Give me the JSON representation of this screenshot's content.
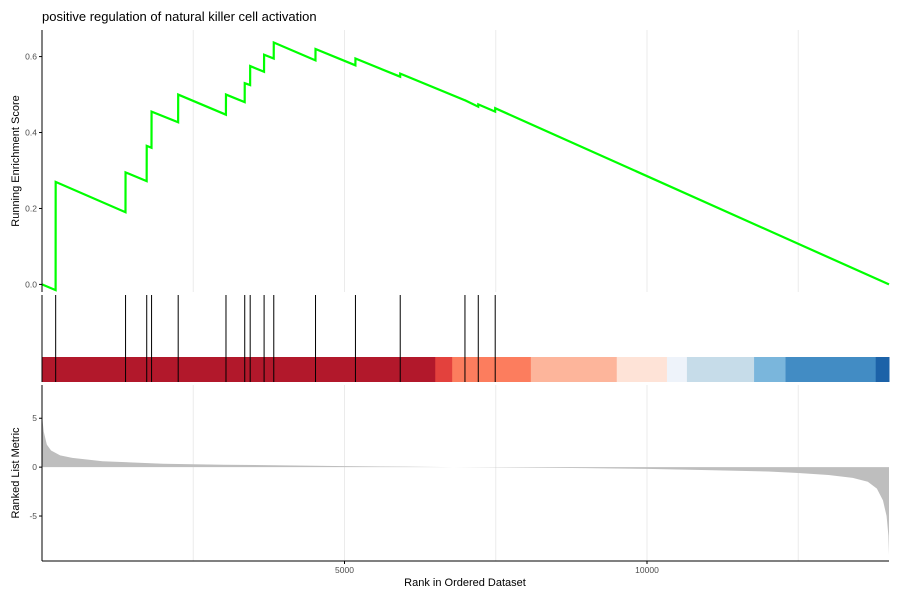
{
  "chart_data": {
    "type": "line",
    "title": "positive regulation of natural killer cell activation",
    "x_axis": {
      "label": "Rank in Ordered Dataset",
      "range": [
        0,
        14000
      ],
      "ticks": [
        5000,
        10000
      ],
      "tick_labels": [
        "5000",
        "10000"
      ],
      "minor_gridlines": [
        2500,
        7500,
        12500
      ]
    },
    "panels": {
      "running_es": {
        "ylabel": "Running Enrichment Score",
        "ylim": [
          -0.02,
          0.67
        ],
        "y_ticks": [
          0.0,
          0.2,
          0.4,
          0.6
        ],
        "y_tick_labels": [
          "0.0",
          "0.2",
          "0.4",
          "0.6"
        ],
        "line_color": "#00ff00",
        "points": [
          [
            0,
            0.0
          ],
          [
            225,
            -0.015
          ],
          [
            226,
            0.27
          ],
          [
            1380,
            0.19
          ],
          [
            1381,
            0.295
          ],
          [
            1730,
            0.272
          ],
          [
            1731,
            0.365
          ],
          [
            1810,
            0.36
          ],
          [
            1811,
            0.455
          ],
          [
            2250,
            0.427
          ],
          [
            2251,
            0.5
          ],
          [
            3040,
            0.447
          ],
          [
            3041,
            0.5
          ],
          [
            3350,
            0.48
          ],
          [
            3351,
            0.53
          ],
          [
            3440,
            0.525
          ],
          [
            3441,
            0.575
          ],
          [
            3670,
            0.56
          ],
          [
            3671,
            0.605
          ],
          [
            3830,
            0.595
          ],
          [
            3831,
            0.637
          ],
          [
            4520,
            0.59
          ],
          [
            4521,
            0.62
          ],
          [
            5180,
            0.577
          ],
          [
            5181,
            0.595
          ],
          [
            5920,
            0.547
          ],
          [
            5921,
            0.555
          ],
          [
            6990,
            0.485
          ],
          [
            6991,
            0.485
          ],
          [
            7210,
            0.468
          ],
          [
            7211,
            0.474
          ],
          [
            7490,
            0.455
          ],
          [
            7491,
            0.464
          ],
          [
            14000,
            0.0
          ]
        ]
      },
      "gene_hits": {
        "positions": [
          226,
          1381,
          1731,
          1811,
          2251,
          3041,
          3351,
          3441,
          3671,
          3831,
          4521,
          5181,
          5921,
          6991,
          7211,
          7491
        ]
      },
      "color_band": {
        "segments": [
          {
            "start": 0,
            "end": 6500,
            "color": "#b2182b"
          },
          {
            "start": 6500,
            "end": 6780,
            "color": "#e3413d"
          },
          {
            "start": 6780,
            "end": 8080,
            "color": "#fc7d5e"
          },
          {
            "start": 8080,
            "end": 9500,
            "color": "#fdb59b"
          },
          {
            "start": 9500,
            "end": 10330,
            "color": "#fee3d7"
          },
          {
            "start": 10330,
            "end": 10660,
            "color": "#eef3fa"
          },
          {
            "start": 10660,
            "end": 11770,
            "color": "#c6dce9"
          },
          {
            "start": 11770,
            "end": 12290,
            "color": "#7ab6dc"
          },
          {
            "start": 12290,
            "end": 13780,
            "color": "#428cc4"
          },
          {
            "start": 13780,
            "end": 14000,
            "color": "#1c62a8"
          }
        ]
      },
      "ranked_metric": {
        "ylabel": "Ranked List Metric",
        "ylim": [
          -9.6,
          8.4
        ],
        "y_ticks": [
          5,
          0,
          -5
        ],
        "y_tick_labels": [
          "5",
          "0",
          "-5"
        ],
        "fill_color": "#bebebe",
        "points": [
          [
            0,
            5.2
          ],
          [
            30,
            3.6
          ],
          [
            80,
            2.3
          ],
          [
            150,
            1.7
          ],
          [
            300,
            1.2
          ],
          [
            500,
            0.95
          ],
          [
            1000,
            0.6
          ],
          [
            2000,
            0.35
          ],
          [
            3000,
            0.25
          ],
          [
            4000,
            0.18
          ],
          [
            5000,
            0.1
          ],
          [
            6000,
            0.05
          ],
          [
            6800,
            0.0
          ],
          [
            8000,
            -0.05
          ],
          [
            9000,
            -0.1
          ],
          [
            10000,
            -0.18
          ],
          [
            11000,
            -0.3
          ],
          [
            12000,
            -0.45
          ],
          [
            12500,
            -0.6
          ],
          [
            13000,
            -0.8
          ],
          [
            13400,
            -1.1
          ],
          [
            13650,
            -1.5
          ],
          [
            13800,
            -2.2
          ],
          [
            13900,
            -3.4
          ],
          [
            13960,
            -5.0
          ],
          [
            13990,
            -7.0
          ],
          [
            14000,
            -9.0
          ]
        ]
      }
    }
  }
}
